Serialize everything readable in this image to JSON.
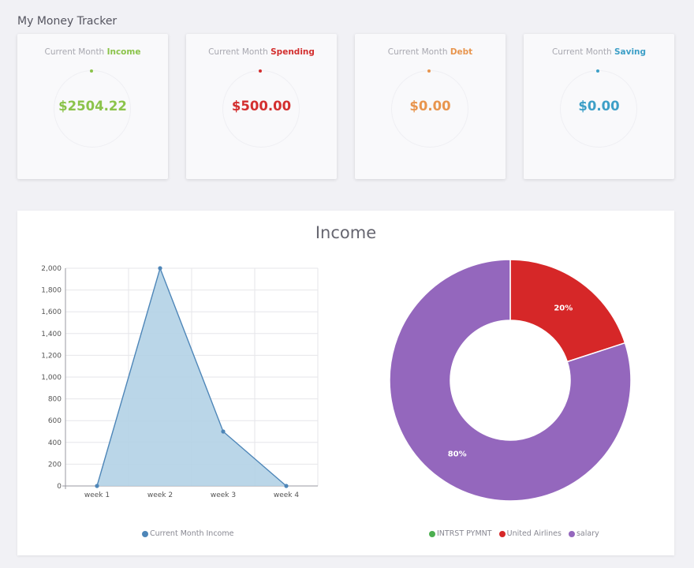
{
  "app": {
    "title": "My Money Tracker"
  },
  "cards": [
    {
      "prefix": "Current Month",
      "keyword": "Income",
      "value": "$2504.22",
      "color": "#8bc34a"
    },
    {
      "prefix": "Current Month",
      "keyword": "Spending",
      "value": "$500.00",
      "color": "#d32f2f"
    },
    {
      "prefix": "Current Month",
      "keyword": "Debt",
      "value": "$0.00",
      "color": "#e8954e"
    },
    {
      "prefix": "Current Month",
      "keyword": "Saving",
      "value": "$0.00",
      "color": "#3d9fc7"
    }
  ],
  "panel": {
    "title": "Income"
  },
  "chart_data": [
    {
      "type": "area",
      "categories": [
        "week 1",
        "week 2",
        "week 3",
        "week 4"
      ],
      "series": [
        {
          "name": "Current Month Income",
          "values": [
            0,
            2000,
            500,
            0
          ],
          "color": "#4e86b8"
        }
      ],
      "ylim": [
        0,
        2000
      ],
      "yticks": [
        0,
        200,
        400,
        600,
        800,
        1000,
        1200,
        1400,
        1600,
        1800,
        2000
      ],
      "ytick_labels": [
        "0",
        "200",
        "400",
        "600",
        "800",
        "1,000",
        "1,200",
        "1,400",
        "1,600",
        "1,800",
        "2,000"
      ],
      "grid": true,
      "legend": "bottom"
    },
    {
      "type": "pie",
      "labels": [
        "INTRST PYMNT",
        "United Airlines",
        "salary"
      ],
      "values": [
        0,
        20,
        80
      ],
      "value_labels": [
        "",
        "20%",
        "80%"
      ],
      "colors": [
        "#4caf50",
        "#d62728",
        "#9467bd"
      ],
      "legend": "bottom"
    }
  ]
}
